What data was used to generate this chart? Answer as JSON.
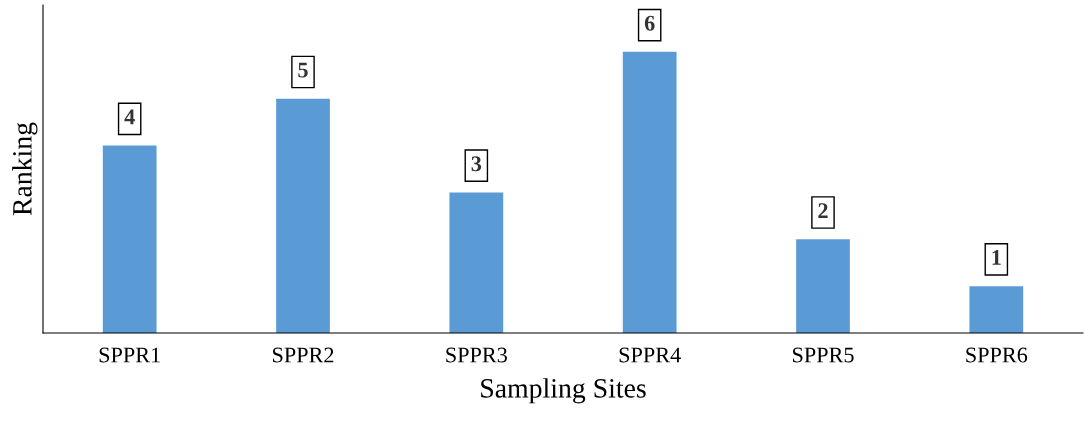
{
  "chart_data": {
    "type": "bar",
    "xlabel": "Sampling Sites",
    "ylabel": "Ranking",
    "categories": [
      "SPPR1",
      "SPPR2",
      "SPPR3",
      "SPPR4",
      "SPPR5",
      "SPPR6"
    ],
    "values": [
      4,
      5,
      3,
      6,
      2,
      1
    ],
    "color": "#5b9bd5",
    "ylim": [
      0,
      7
    ],
    "tick_labels": "x",
    "data_labels": true,
    "grid": false,
    "legend": false
  }
}
